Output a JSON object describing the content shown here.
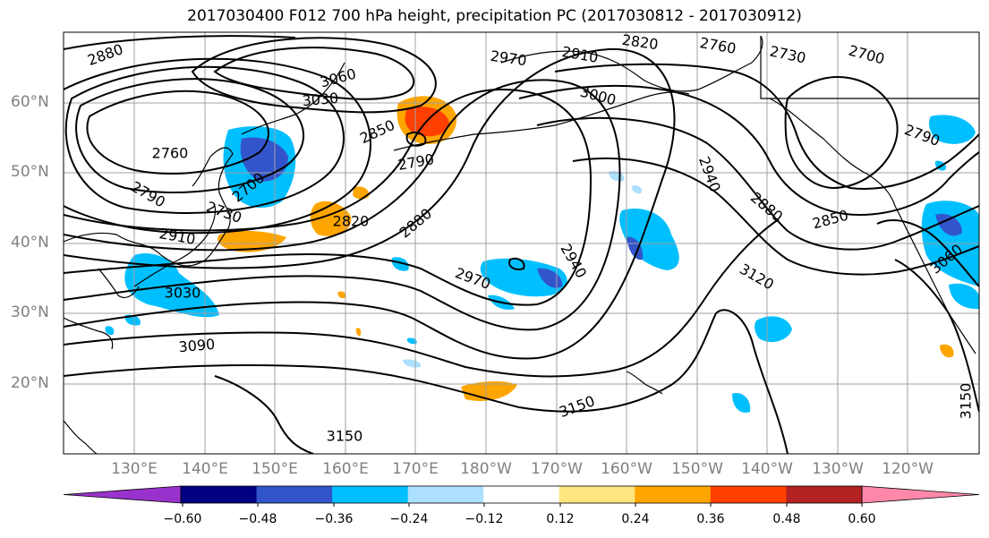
{
  "title": "2017030400 F012 700 hPa height, precipitation PC (2017030812 - 2017030912)",
  "lat_labels": [
    "60°N",
    "50°N",
    "40°N",
    "30°N",
    "20°N"
  ],
  "lon_labels": [
    "130°E",
    "140°E",
    "150°E",
    "160°E",
    "170°E",
    "180°W",
    "170°W",
    "160°W",
    "150°W",
    "140°W",
    "130°W",
    "120°W"
  ],
  "contour_labels": [
    "2880",
    "3060",
    "3030",
    "2910",
    "2970",
    "2820",
    "2760",
    "2730",
    "2700",
    "3000",
    "2850",
    "2790",
    "2760",
    "2790",
    "2700",
    "2730",
    "2910",
    "2820",
    "2880",
    "2970",
    "2940",
    "2940",
    "2880",
    "2850",
    "3120",
    "3060",
    "2790",
    "3030",
    "3090",
    "3150",
    "3150",
    "3150"
  ],
  "colorbar": {
    "colors": [
      "#9932CC",
      "#000080",
      "#3355CC",
      "#00BFFF",
      "#ADDFFF",
      "#FFFFFF",
      "#FFE680",
      "#FFA500",
      "#FF4000",
      "#B22222",
      "#FF88AA"
    ],
    "tick_labels": [
      "−0.60",
      "−0.48",
      "−0.36",
      "−0.24",
      "−0.12",
      "0.12",
      "0.24",
      "0.36",
      "0.48",
      "0.60"
    ]
  },
  "colors": {
    "coast": "#000000",
    "grid": "#a0a0a0",
    "contour": "#000000"
  }
}
